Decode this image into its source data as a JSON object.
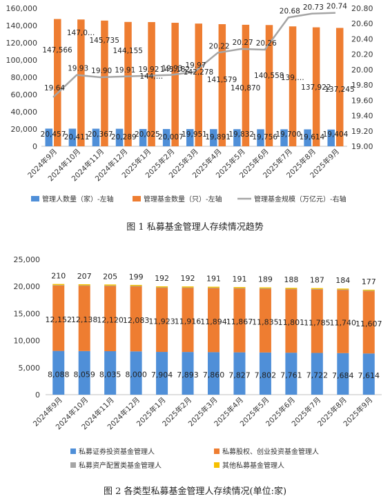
{
  "chart_data": [
    {
      "type": "bar",
      "title": "",
      "caption": "图 1 私募基金管理人存续情况趋势",
      "categories": [
        "2024年9月",
        "2024年10月",
        "2024年11月",
        "2024年12月",
        "2025年1月",
        "2025年2月",
        "2025年3月",
        "2025年4月",
        "2025年5月",
        "2025年6月",
        "2025年7月",
        "2025年8月",
        "2025年9月"
      ],
      "y_left": {
        "min": 0,
        "max": 160000,
        "step": 20000,
        "ticks": [
          "0",
          "20,000",
          "40,000",
          "60,000",
          "80,000",
          "100,000",
          "120,000",
          "140,000",
          "160,000"
        ]
      },
      "y_right": {
        "min": 19.0,
        "max": 20.8,
        "step": 0.2,
        "ticks": [
          "19.00",
          "19.20",
          "19.40",
          "19.60",
          "19.80",
          "20.00",
          "20.20",
          "20.40",
          "20.60",
          "20.80"
        ]
      },
      "series": [
        {
          "name": "管理人数量（家）-左轴",
          "type": "bar",
          "axis": "left",
          "color": "#4f8fd8",
          "values": [
            20457,
            20411,
            20367,
            20289,
            20025,
            20007,
            19951,
            19891,
            19832,
            19756,
            19700,
            19614,
            19404
          ],
          "labels": [
            "20,457",
            "20,411",
            "20,367",
            "20,289",
            "20,025",
            "20,007",
            "19,951",
            "19,891",
            "19,832",
            "19,756",
            "19,700",
            "19,614",
            "19,404"
          ]
        },
        {
          "name": "管理基金数量（只）-左轴",
          "type": "bar",
          "axis": "left",
          "color": "#ee7d31",
          "values": [
            147566,
            147000,
            145735,
            144155,
            144000,
            143182,
            142278,
            141579,
            140870,
            140558,
            139000,
            137922,
            137245
          ],
          "labels": [
            "147,566",
            "147,0…",
            "145,735",
            "144,155",
            "144,…",
            "143,182",
            "142,278",
            "141,579",
            "140,870",
            "140,558",
            "139,…",
            "137,922",
            "137,245"
          ]
        },
        {
          "name": "管理基金规模（万亿元）-右轴",
          "type": "line",
          "axis": "right",
          "color": "#a5a5a5",
          "values": [
            19.64,
            19.93,
            19.9,
            19.91,
            19.92,
            19.93,
            19.97,
            20.22,
            20.27,
            20.26,
            20.68,
            20.73,
            20.74
          ],
          "labels": [
            "19.64",
            "19.93",
            "19.90",
            "19.91",
            "19.92",
            "19.93",
            "19.97",
            "20.22",
            "20.27",
            "20.26",
            "20.68",
            "20.73",
            "20.74"
          ]
        }
      ],
      "legend": "bottom",
      "grid": false
    },
    {
      "type": "bar",
      "stacked": true,
      "title": "",
      "caption": "图 2 各类型私募基金管理人存续情况(单位:家)",
      "categories": [
        "2024年9月",
        "2024年10月",
        "2024年11月",
        "2024年12月",
        "2025年1月",
        "2025年2月",
        "2025年3月",
        "2025年4月",
        "2025年5月",
        "2025年6月",
        "2025年7月",
        "2025年8月",
        "2025年9月"
      ],
      "y": {
        "min": 0,
        "max": 25000,
        "step": 5000,
        "ticks": [
          "0",
          "5,000",
          "10,000",
          "15,000",
          "20,000",
          "25,000"
        ]
      },
      "series": [
        {
          "name": "私募证券投资基金管理人",
          "color": "#4f8fd8",
          "values": [
            8088,
            8059,
            8035,
            8000,
            7904,
            7893,
            7860,
            7827,
            7802,
            7761,
            7722,
            7684,
            7614
          ],
          "labels": [
            "8,088",
            "8,059",
            "8,035",
            "8,000",
            "7,904",
            "7,893",
            "7,860",
            "7,827",
            "7,802",
            "7,761",
            "7,722",
            "7,684",
            "7,614"
          ]
        },
        {
          "name": "私募股权、创业投资基金管理人",
          "color": "#ee7d31",
          "values": [
            12152,
            12138,
            12120,
            12083,
            11923,
            11916,
            11894,
            11867,
            11835,
            11801,
            11785,
            11740,
            11607
          ],
          "labels": [
            "12,152",
            "12,138",
            "12,120",
            "12,083",
            "11,923",
            "11,916",
            "11,894",
            "11,867",
            "11,835",
            "11,801",
            "11,785",
            "11,740",
            "11,607"
          ]
        },
        {
          "name": "私募资产配置类基金管理人",
          "color": "#a5a5a5",
          "values": [
            7,
            7,
            7,
            7,
            7,
            7,
            6,
            6,
            6,
            6,
            6,
            6,
            6
          ],
          "labels": []
        },
        {
          "name": "其他私募基金管理人",
          "color": "#f6c000",
          "values": [
            210,
            207,
            205,
            199,
            192,
            192,
            191,
            191,
            189,
            188,
            187,
            184,
            177
          ],
          "labels": [
            "210",
            "207",
            "205",
            "199",
            "192",
            "192",
            "191",
            "191",
            "189",
            "188",
            "187",
            "184",
            "177"
          ]
        }
      ],
      "legend": "bottom",
      "grid": false
    }
  ]
}
